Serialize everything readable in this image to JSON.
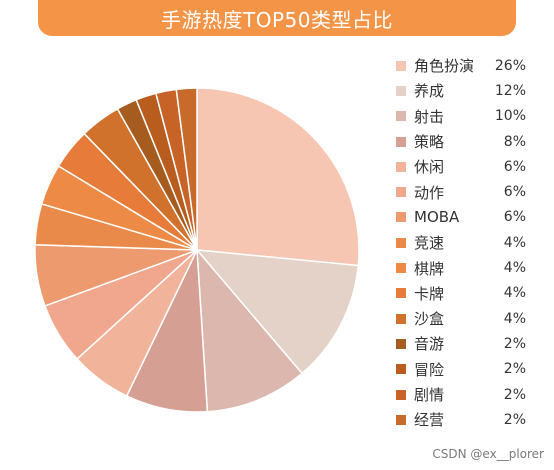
{
  "chart_data": {
    "type": "pie",
    "title": "手游热度TOP50类型占比",
    "categories": [
      "角色扮演",
      "养成",
      "射击",
      "策略",
      "休闲",
      "动作",
      "MOBA",
      "竞速",
      "棋牌",
      "卡牌",
      "沙盒",
      "音游",
      "冒险",
      "剧情",
      "经营"
    ],
    "values": [
      26,
      12,
      10,
      8,
      6,
      6,
      6,
      4,
      4,
      4,
      4,
      2,
      2,
      2,
      2
    ],
    "labels": [
      "26%",
      "12%",
      "10%",
      "8%",
      "6%",
      "6%",
      "6%",
      "4%",
      "4%",
      "4%",
      "4%",
      "2%",
      "2%",
      "2%",
      "2%"
    ],
    "colors": [
      "#f6c6b2",
      "#e4d1c7",
      "#dcb7ad",
      "#d5a093",
      "#f2b39b",
      "#f0a78d",
      "#ee9a6f",
      "#ea8a4a",
      "#ed8a45",
      "#e67b3a",
      "#d0712c",
      "#a65c1f",
      "#b85d1e",
      "#c76326",
      "#c86a29"
    ],
    "legend_position": "right"
  },
  "watermark": "CSDN @ex__plorer"
}
